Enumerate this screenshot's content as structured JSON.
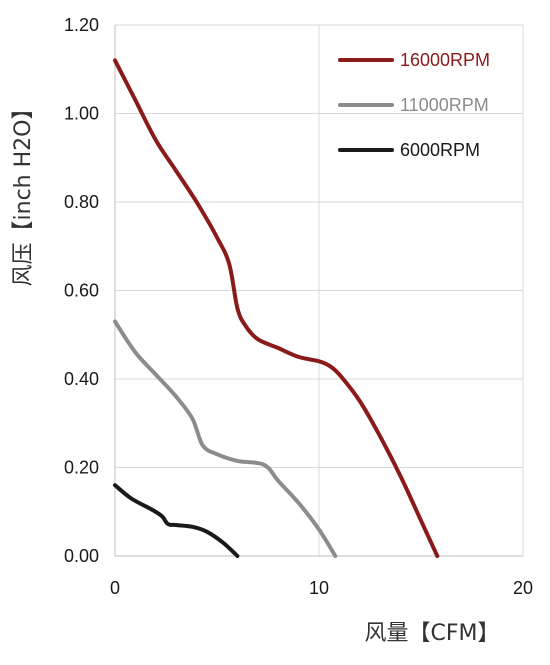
{
  "chart_data": {
    "type": "line",
    "title": "",
    "xlabel": "风量【CFM】",
    "ylabel": "风压【inch H2O】",
    "xlim": [
      0,
      20
    ],
    "ylim": [
      0,
      1.2
    ],
    "x_ticks": [
      "0",
      "10",
      "20"
    ],
    "y_ticks": [
      "0.00",
      "0.20",
      "0.40",
      "0.60",
      "0.80",
      "1.00",
      "1.20"
    ],
    "grid": "vertical and horizontal",
    "legend_position": "top-right",
    "series": [
      {
        "name": "16000RPM",
        "color": "#8b1a1a",
        "x": [
          0,
          1,
          2,
          3,
          4,
          5,
          5.6,
          6,
          6.4,
          7,
          8,
          9,
          10,
          10.5,
          11,
          12,
          13,
          14,
          15,
          15.8
        ],
        "y": [
          1.12,
          1.03,
          0.94,
          0.87,
          0.8,
          0.72,
          0.66,
          0.56,
          0.52,
          0.49,
          0.47,
          0.45,
          0.44,
          0.43,
          0.41,
          0.35,
          0.27,
          0.18,
          0.08,
          0.0
        ]
      },
      {
        "name": "11000RPM",
        "color": "#8c8c8c",
        "x": [
          0,
          1,
          2,
          3,
          3.8,
          4.3,
          5,
          6,
          7,
          7.5,
          8,
          9,
          10,
          10.8
        ],
        "y": [
          0.53,
          0.46,
          0.41,
          0.36,
          0.31,
          0.25,
          0.23,
          0.215,
          0.21,
          0.2,
          0.17,
          0.12,
          0.06,
          0.0
        ]
      },
      {
        "name": "6000RPM",
        "color": "#1a1a1a",
        "x": [
          0,
          0.8,
          1.8,
          2.3,
          2.6,
          3,
          3.8,
          4.5,
          5.3,
          6
        ],
        "y": [
          0.16,
          0.13,
          0.105,
          0.09,
          0.072,
          0.07,
          0.066,
          0.055,
          0.03,
          0.0
        ]
      }
    ]
  }
}
